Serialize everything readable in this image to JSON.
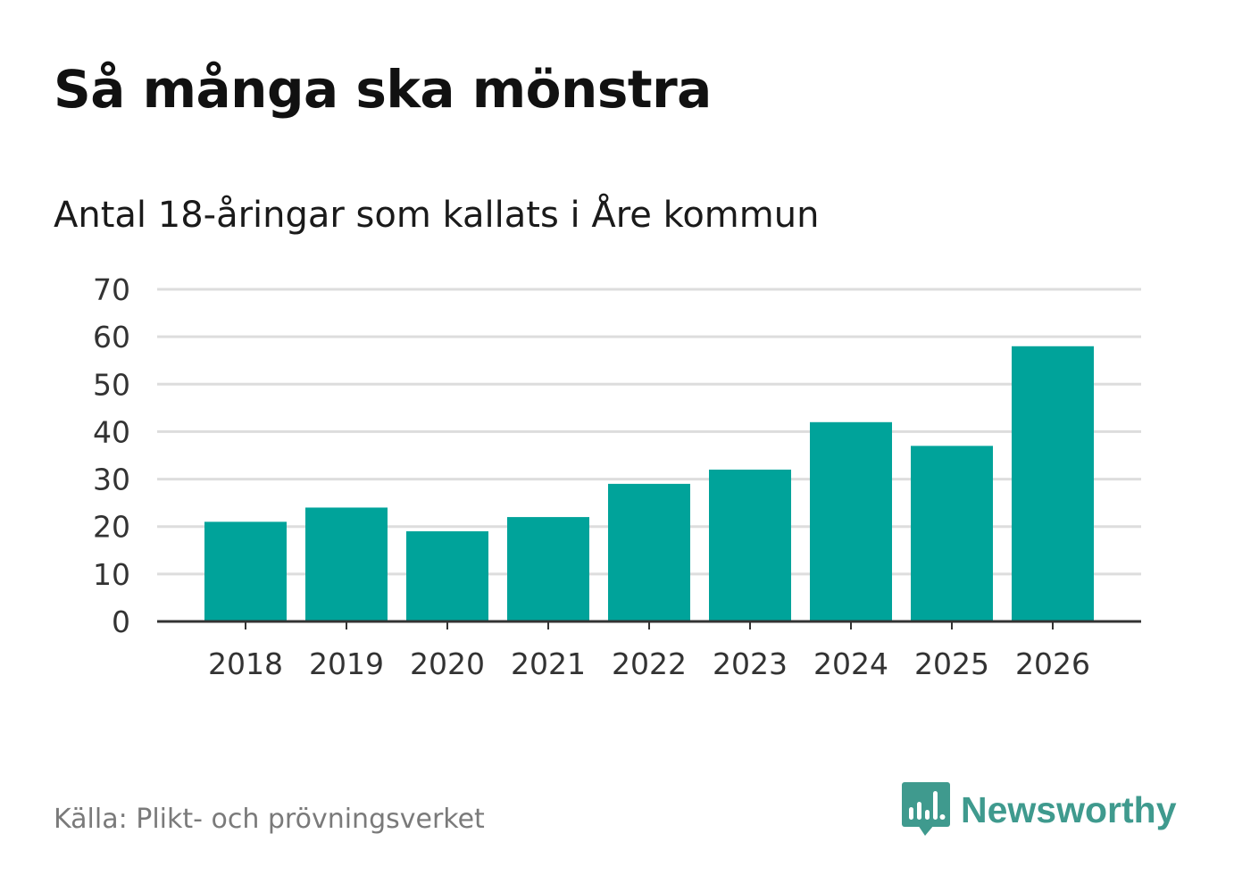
{
  "header": {
    "title": "Så många ska mönstra",
    "subtitle": "Antal 18-åringar som kallats i Åre kommun"
  },
  "footer": {
    "source": "Källa: Plikt- och prövningsverket",
    "brand": "Newsworthy",
    "brand_icon": "bar-chart-speech-bubble-icon"
  },
  "colors": {
    "bar": "#00a39a",
    "grid": "#dddddd",
    "axis": "#333333",
    "tick_text": "#333333",
    "brand": "#3f9a8e"
  },
  "chart_data": {
    "type": "bar",
    "title": "Så många ska mönstra",
    "subtitle": "Antal 18-åringar som kallats i Åre kommun",
    "categories": [
      "2018",
      "2019",
      "2020",
      "2021",
      "2022",
      "2023",
      "2024",
      "2025",
      "2026"
    ],
    "values": [
      21,
      24,
      19,
      22,
      29,
      32,
      42,
      37,
      58
    ],
    "ylim": [
      0,
      70
    ],
    "yticks": [
      0,
      10,
      20,
      30,
      40,
      50,
      60,
      70
    ],
    "xlabel": "",
    "ylabel": "",
    "grid": true,
    "legend": "none"
  }
}
